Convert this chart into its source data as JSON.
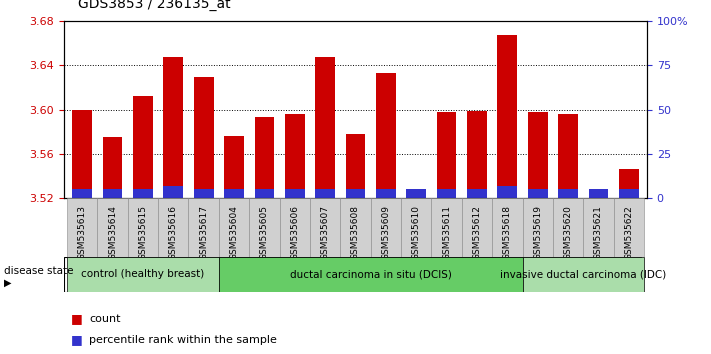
{
  "title": "GDS3853 / 236135_at",
  "samples": [
    "GSM535613",
    "GSM535614",
    "GSM535615",
    "GSM535616",
    "GSM535617",
    "GSM535604",
    "GSM535605",
    "GSM535606",
    "GSM535607",
    "GSM535608",
    "GSM535609",
    "GSM535610",
    "GSM535611",
    "GSM535612",
    "GSM535618",
    "GSM535619",
    "GSM535620",
    "GSM535621",
    "GSM535622"
  ],
  "count_values": [
    3.6,
    3.575,
    3.612,
    3.648,
    3.63,
    3.576,
    3.593,
    3.596,
    3.648,
    3.578,
    3.633,
    3.528,
    3.598,
    3.599,
    3.668,
    3.598,
    3.596,
    3.524,
    3.546
  ],
  "percentile_values": [
    5,
    5,
    5,
    7,
    5,
    5,
    5,
    5,
    5,
    5,
    5,
    5,
    5,
    5,
    7,
    5,
    5,
    5,
    5
  ],
  "ylim_left": [
    3.52,
    3.68
  ],
  "ylim_right": [
    0,
    100
  ],
  "yticks_left": [
    3.52,
    3.56,
    3.6,
    3.64,
    3.68
  ],
  "yticks_right": [
    0,
    25,
    50,
    75,
    100
  ],
  "bar_color_red": "#cc0000",
  "bar_color_blue": "#3333cc",
  "groups": [
    {
      "label": "control (healthy breast)",
      "start": 0,
      "end": 5,
      "color": "#aaddaa"
    },
    {
      "label": "ductal carcinoma in situ (DCIS)",
      "start": 5,
      "end": 15,
      "color": "#66cc66"
    },
    {
      "label": "invasive ductal carcinoma (IDC)",
      "start": 15,
      "end": 19,
      "color": "#aaddaa"
    }
  ],
  "legend_count_label": "count",
  "legend_percentile_label": "percentile rank within the sample",
  "disease_state_label": "disease state",
  "left_tick_color": "#cc0000",
  "right_tick_color": "#3333cc"
}
